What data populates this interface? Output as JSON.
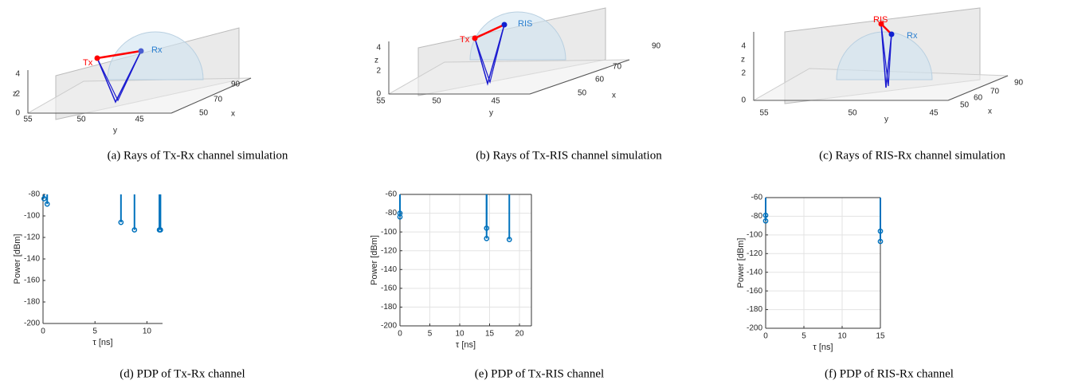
{
  "scenes": [
    {
      "caption": "(a) Rays of Tx-Rx channel simulation",
      "zlabel": "z",
      "ylabel": "y",
      "xlabel": "x",
      "zticks": [
        0,
        2,
        4
      ],
      "yticks": [
        55,
        50,
        45
      ],
      "xticks": [
        50,
        70,
        90
      ],
      "nodes": [
        "Tx",
        "Rx"
      ]
    },
    {
      "caption": "(b) Rays of Tx-RIS channel simulation",
      "zlabel": "z",
      "ylabel": "y",
      "xlabel": "x",
      "zticks": [
        0,
        2,
        4
      ],
      "yticks": [
        55,
        50,
        45
      ],
      "xticks": [
        50,
        60,
        70,
        90
      ],
      "nodes": [
        "Tx",
        "RIS"
      ]
    },
    {
      "caption": "(c) Rays of RIS-Rx channel simulation",
      "zlabel": "z",
      "ylabel": "y",
      "xlabel": "x",
      "zticks": [
        0,
        2,
        4
      ],
      "yticks": [
        55,
        50,
        45
      ],
      "xticks": [
        50,
        60,
        70,
        90
      ],
      "nodes": [
        "RIS",
        "Rx"
      ]
    }
  ],
  "chart_data": [
    {
      "type": "stem",
      "caption": "(d) PDP of Tx-Rx channel",
      "xlabel": "τ [ns]",
      "ylabel": "Power [dBm]",
      "color": "#0072bd",
      "grid": false,
      "x": [
        0.1,
        0.4,
        7.5,
        8.8,
        11.2,
        11.3
      ],
      "values": [
        -84,
        -89,
        -106,
        -113,
        -113,
        -113
      ],
      "xlim": [
        0,
        11.5
      ],
      "ylim": [
        -200,
        -80
      ],
      "xticks": [
        0,
        5,
        10
      ],
      "yticks": [
        -80,
        -100,
        -120,
        -140,
        -160,
        -180,
        -200
      ]
    },
    {
      "type": "stem",
      "caption": "(e) PDP of Tx-RIS channel",
      "xlabel": "τ [ns]",
      "ylabel": "Power [dBm]",
      "color": "#0072bd",
      "grid": true,
      "x": [
        0,
        0,
        14.5,
        14.5,
        18.3
      ],
      "values": [
        -80,
        -84,
        -96,
        -107,
        -108
      ],
      "xlim": [
        0,
        22
      ],
      "ylim": [
        -200,
        -60
      ],
      "xticks": [
        0,
        5,
        10,
        15,
        20
      ],
      "yticks": [
        -60,
        -80,
        -100,
        -120,
        -140,
        -160,
        -180,
        -200
      ]
    },
    {
      "type": "stem",
      "caption": "(f) PDP of RIS-Rx channel",
      "xlabel": "τ [ns]",
      "ylabel": "Power [dBm]",
      "color": "#0072bd",
      "grid": true,
      "x": [
        0,
        0,
        15,
        15
      ],
      "values": [
        -79,
        -85,
        -96,
        -107
      ],
      "xlim": [
        0,
        15
      ],
      "ylim": [
        -200,
        -60
      ],
      "xticks": [
        0,
        5,
        10,
        15
      ],
      "yticks": [
        -60,
        -80,
        -100,
        -120,
        -140,
        -160,
        -180,
        -200
      ]
    }
  ]
}
